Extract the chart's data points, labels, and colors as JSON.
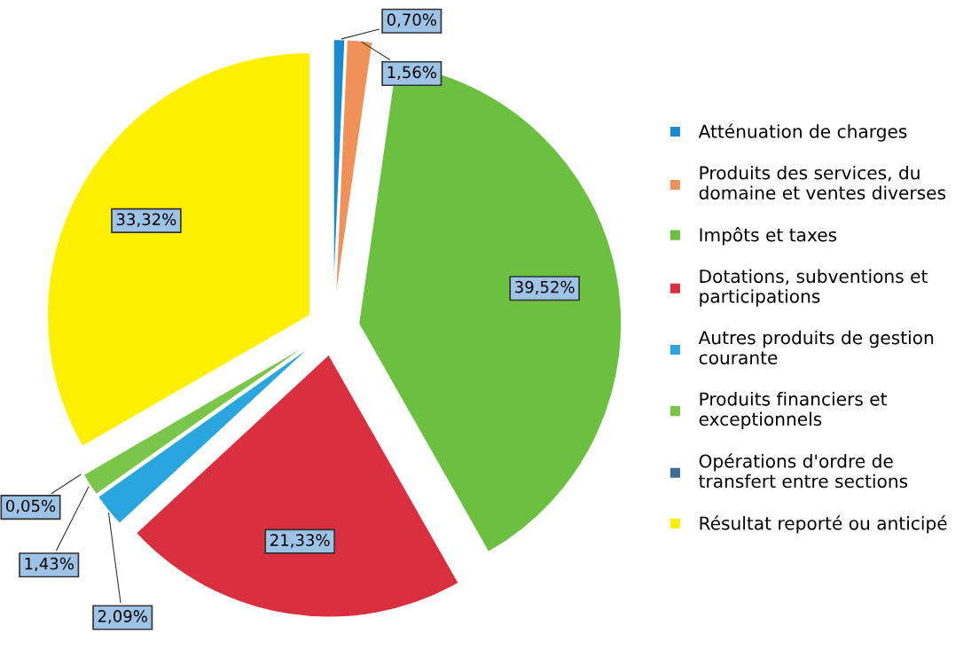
{
  "chart_data": {
    "type": "pie",
    "categories": [
      "Atténuation de charges",
      "Produits des services, du\ndomaine et ventes diverses",
      "Impôts et taxes",
      "Dotations, subventions et\nparticipations",
      "Autres produits de gestion\ncourante",
      "Produits financiers et\nexceptionnels",
      "Opérations d'ordre de\ntransfert entre sections",
      "Résultat reporté ou anticipé"
    ],
    "values": [
      0.7,
      1.56,
      39.52,
      21.33,
      2.09,
      1.43,
      0.05,
      33.32
    ],
    "value_labels": [
      "0,70%",
      "1,56%",
      "39,52%",
      "21,33%",
      "2,09%",
      "1,43%",
      "0,05%",
      "33,32%"
    ],
    "colors": [
      "#1b8ad3",
      "#f0915a",
      "#6cc040",
      "#da2f3e",
      "#2aa6df",
      "#79c64a",
      "#3c6e98",
      "#fff000"
    ],
    "legend": "right"
  }
}
